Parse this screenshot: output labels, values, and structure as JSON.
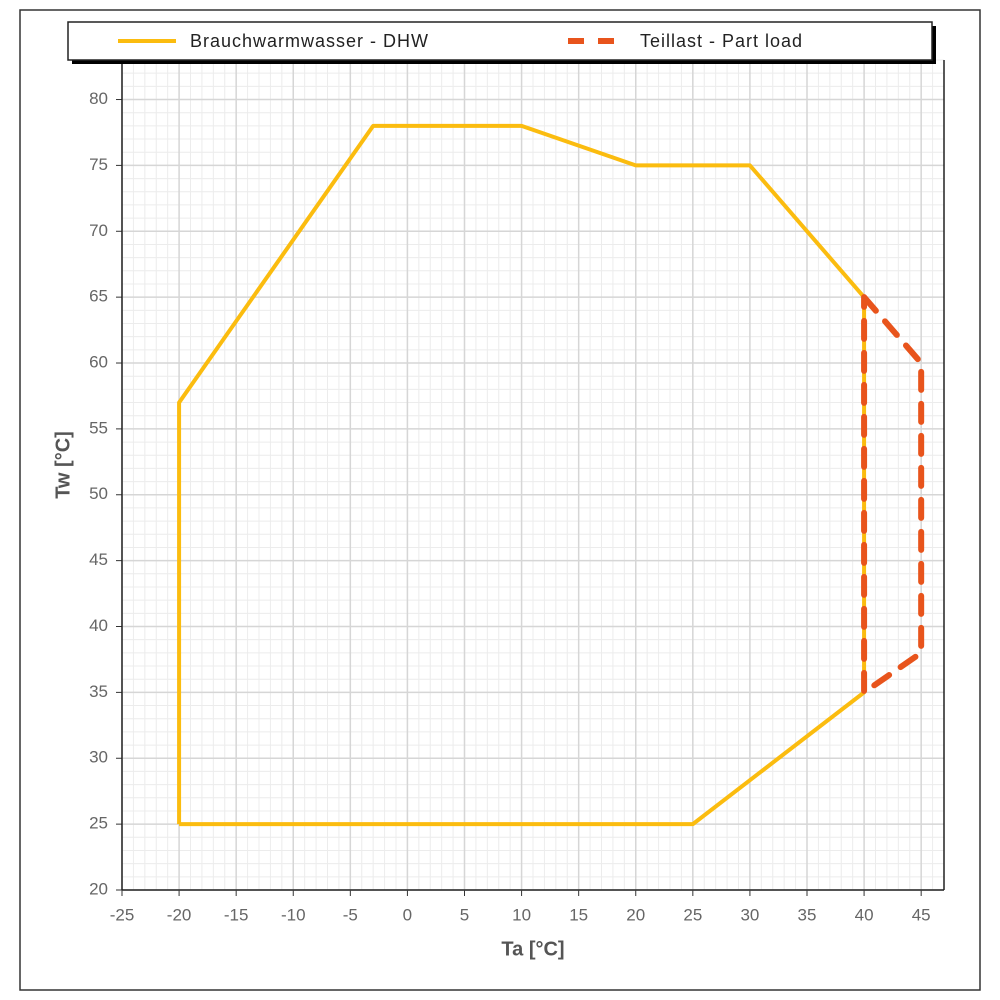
{
  "chart_data": {
    "type": "line",
    "xlabel": "Ta [°C]",
    "ylabel": "Tw [°C]",
    "xlim": [
      -25,
      47
    ],
    "ylim": [
      20,
      83
    ],
    "xticks": [
      -25,
      -20,
      -15,
      -10,
      -5,
      0,
      5,
      10,
      15,
      20,
      25,
      30,
      35,
      40,
      45
    ],
    "yticks": [
      20,
      25,
      30,
      35,
      40,
      45,
      50,
      55,
      60,
      65,
      70,
      75,
      80
    ],
    "grid": true,
    "minor_grid_step": 1,
    "legend": "top",
    "series": [
      {
        "name": "Brauchwarmwasser - DHW",
        "color": "#fbbc0f",
        "dashed": false,
        "x": [
          -20,
          -20,
          -3,
          10,
          20,
          30,
          40,
          40,
          25,
          -20
        ],
        "values": [
          25,
          57,
          78,
          78,
          75,
          75,
          65,
          35,
          25,
          25
        ]
      },
      {
        "name": "Teillast - Part load",
        "color": "#e8541c",
        "dashed": true,
        "x": [
          40,
          45,
          45,
          40,
          40
        ],
        "values": [
          65,
          60,
          38,
          35,
          65
        ]
      }
    ]
  }
}
